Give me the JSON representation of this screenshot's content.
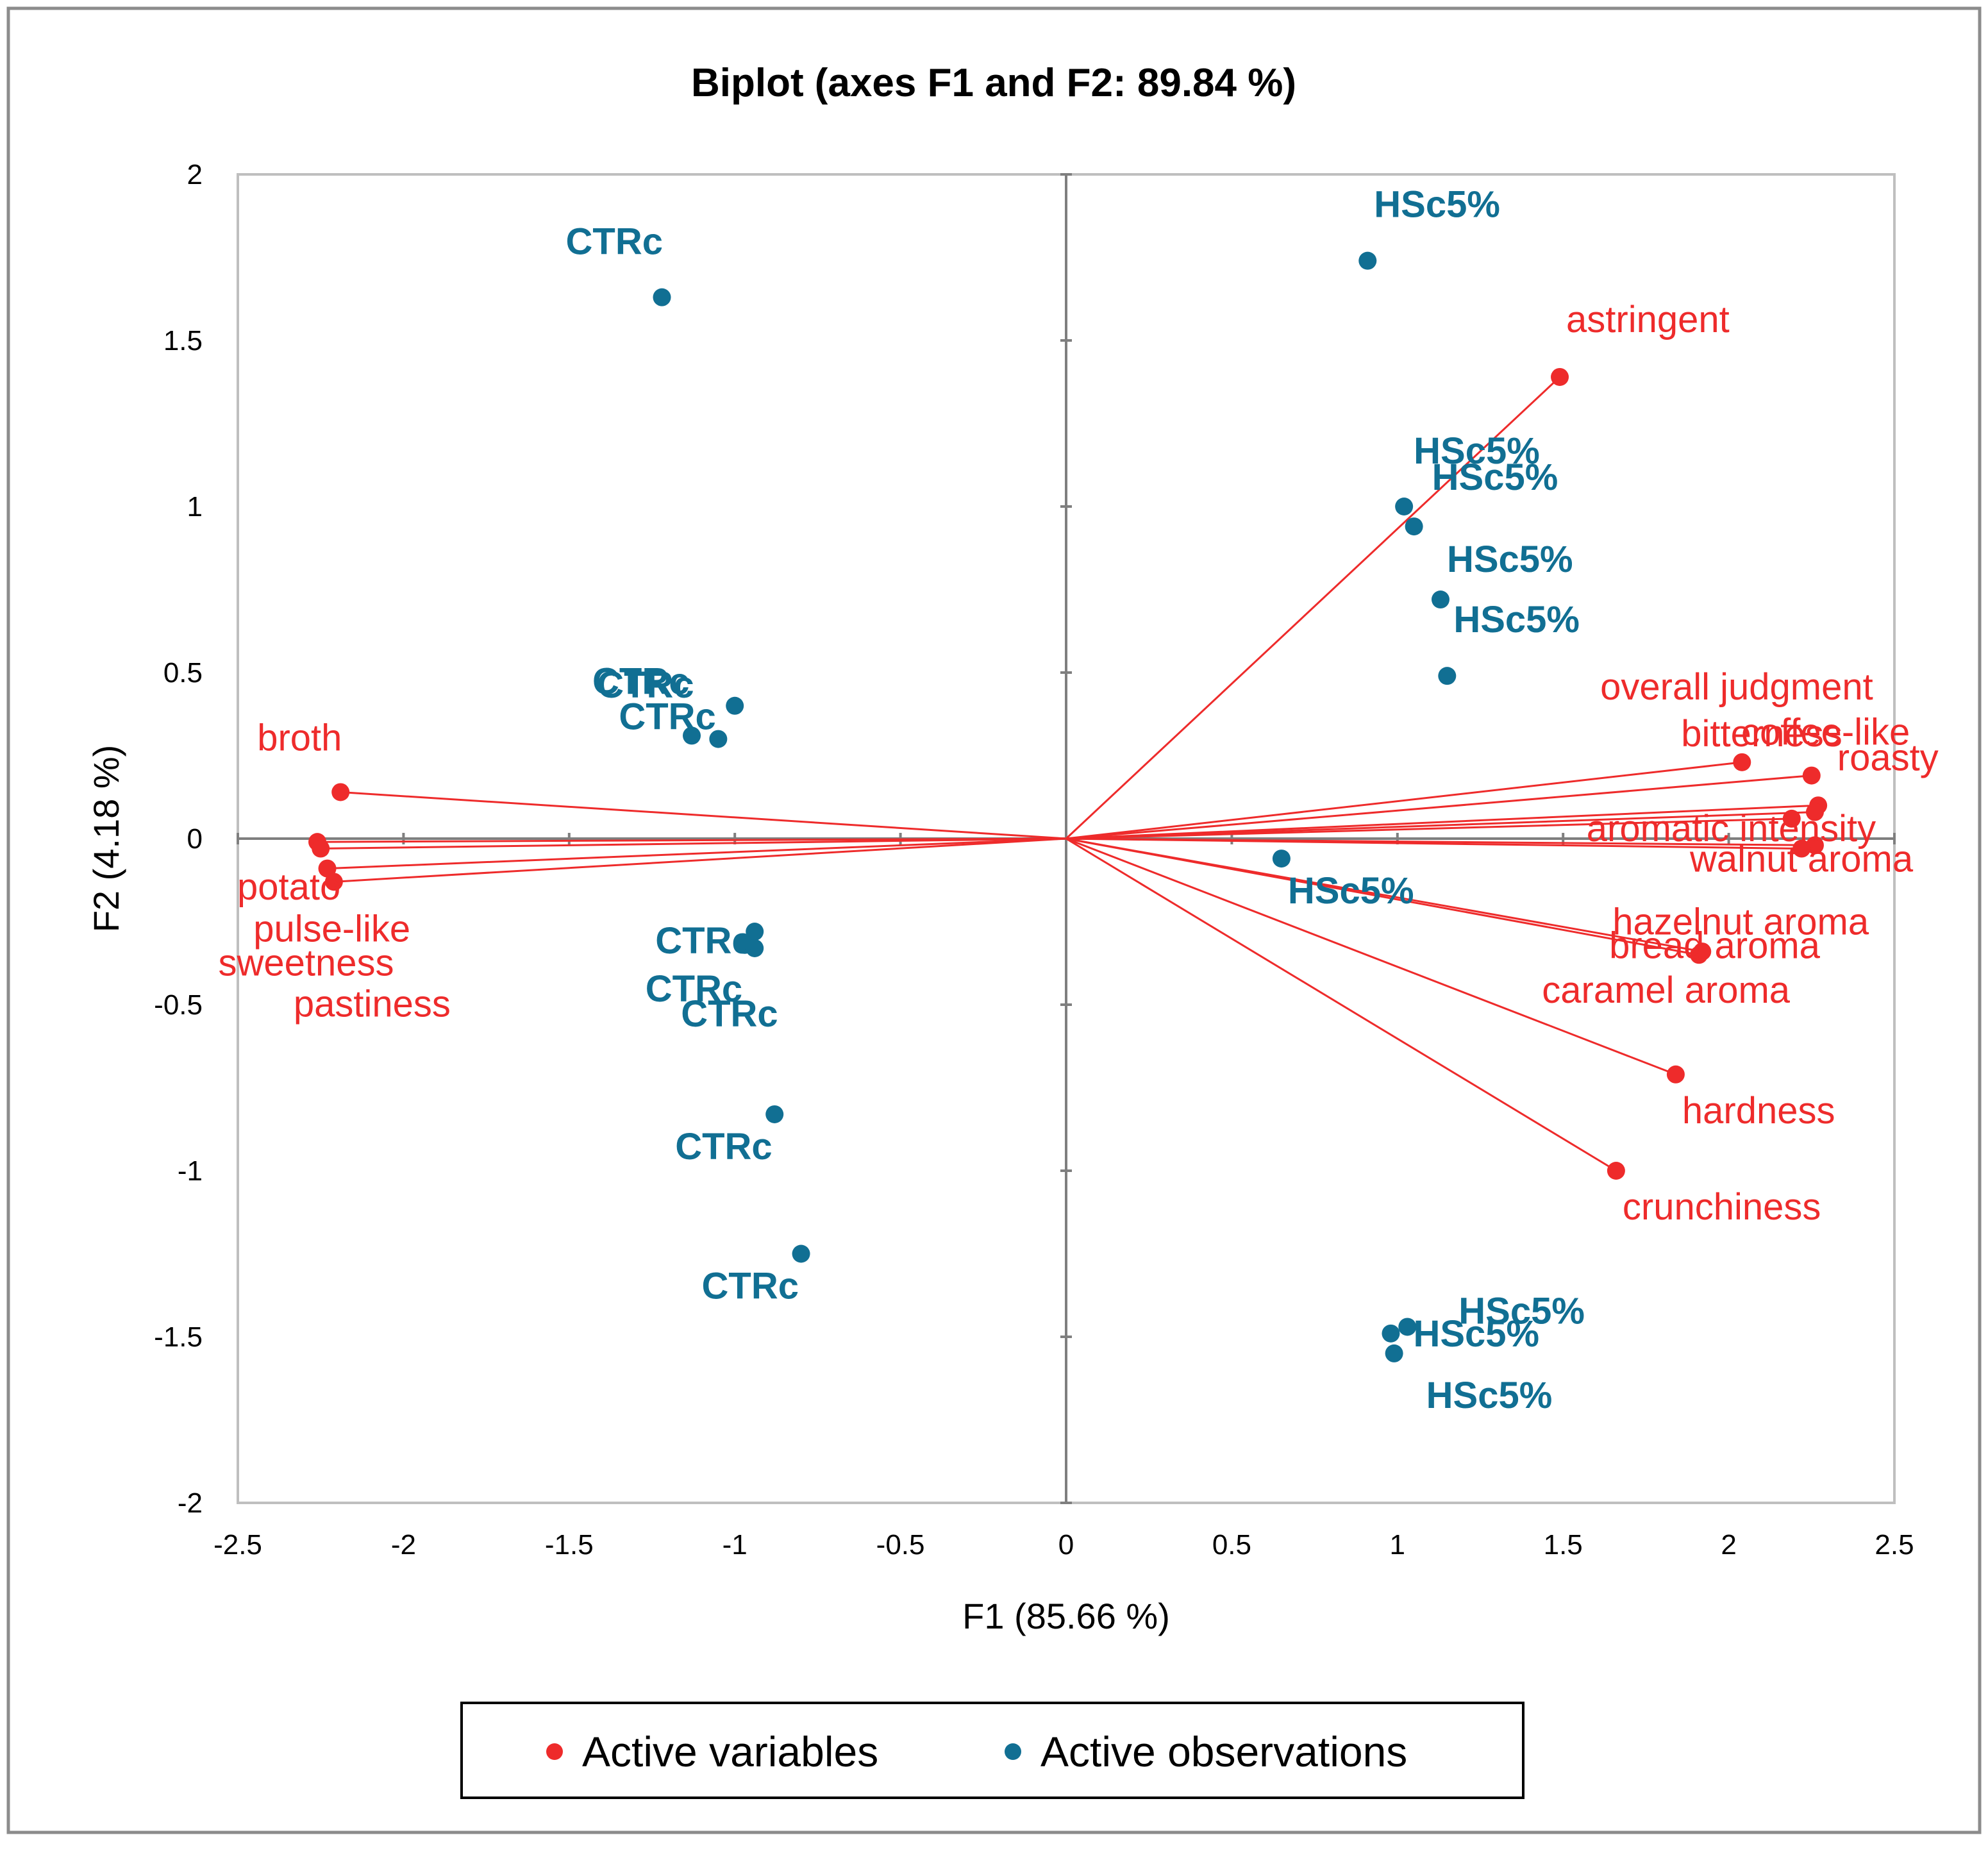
{
  "chart_data": {
    "type": "scatter",
    "title": "Biplot (axes F1 and F2: 89.84 %)",
    "xlabel": "F1 (85.66 %)",
    "ylabel": "F2 (4.18 %)",
    "xlim": [
      -2.5,
      2.5
    ],
    "ylim": [
      -2,
      2
    ],
    "xticks": [
      "-2.5",
      "-2",
      "-1.5",
      "-1",
      "-0.5",
      "0",
      "0.5",
      "1",
      "1.5",
      "2",
      "2.5"
    ],
    "yticks": [
      "2",
      "1.5",
      "1",
      "0.5",
      "0",
      "-0.5",
      "-1",
      "-1.5",
      "-2"
    ],
    "legend": {
      "position": "bottom",
      "entries": [
        {
          "name": "Active variables",
          "color": "#ee2b2b"
        },
        {
          "name": "Active observations",
          "color": "#116f93"
        }
      ]
    },
    "colors": {
      "variables": "#ee2b2b",
      "observations": "#116f93",
      "axes": "#7f7f7f"
    },
    "variables": [
      {
        "name": "astringent",
        "x": 1.49,
        "y": 1.39
      },
      {
        "name": "overall judgment",
        "x": 2.27,
        "y": 0.1
      },
      {
        "name": "coffee-like",
        "x": 2.26,
        "y": 0.08
      },
      {
        "name": "bitterness",
        "x": 2.04,
        "y": 0.23
      },
      {
        "name": "roasty",
        "x": 2.25,
        "y": 0.19
      },
      {
        "name": "aromatic intensity",
        "x": 2.19,
        "y": 0.06
      },
      {
        "name": "walnut aroma",
        "x": 2.26,
        "y": -0.02
      },
      {
        "name": "hazelnut aroma",
        "x": 2.22,
        "y": -0.03
      },
      {
        "name": "bread aroma",
        "x": 1.91,
        "y": -0.35
      },
      {
        "name": "caramel aroma",
        "x": 1.92,
        "y": -0.34
      },
      {
        "name": "hardness",
        "x": 1.84,
        "y": -0.71
      },
      {
        "name": "crunchiness",
        "x": 1.66,
        "y": -1.0
      },
      {
        "name": "broth",
        "x": -2.19,
        "y": 0.14
      },
      {
        "name": "potato",
        "x": -2.26,
        "y": -0.01
      },
      {
        "name": "pulse-like",
        "x": -2.25,
        "y": -0.03
      },
      {
        "name": "sweetness",
        "x": -2.23,
        "y": -0.09
      },
      {
        "name": "pastiness",
        "x": -2.21,
        "y": -0.13
      }
    ],
    "observations": [
      {
        "name": "CTRc",
        "x": -1.22,
        "y": 1.63
      },
      {
        "name": "CTRc",
        "x": -1.0,
        "y": 0.4
      },
      {
        "name": "CTRc",
        "x": -1.13,
        "y": 0.31
      },
      {
        "name": "CTRc",
        "x": -1.05,
        "y": 0.3
      },
      {
        "name": "CTRc",
        "x": -0.94,
        "y": -0.28
      },
      {
        "name": "CTRc",
        "x": -0.97,
        "y": -0.32
      },
      {
        "name": "CTRc",
        "x": -0.94,
        "y": -0.33
      },
      {
        "name": "CTRc",
        "x": -0.88,
        "y": -0.83
      },
      {
        "name": "CTRc",
        "x": -0.8,
        "y": -1.25
      },
      {
        "name": "HSc5%",
        "x": 0.91,
        "y": 1.74
      },
      {
        "name": "HSc5%",
        "x": 1.02,
        "y": 1.0
      },
      {
        "name": "HSc5%",
        "x": 1.05,
        "y": 0.94
      },
      {
        "name": "HSc5%",
        "x": 1.13,
        "y": 0.72
      },
      {
        "name": "HSc5%",
        "x": 1.15,
        "y": 0.49
      },
      {
        "name": "HSc5%",
        "x": 0.65,
        "y": -0.06
      },
      {
        "name": "HSc5%",
        "x": 1.03,
        "y": -1.47
      },
      {
        "name": "HSc5%",
        "x": 0.98,
        "y": -1.49
      },
      {
        "name": "HSc5%",
        "x": 0.99,
        "y": -1.55
      }
    ]
  }
}
